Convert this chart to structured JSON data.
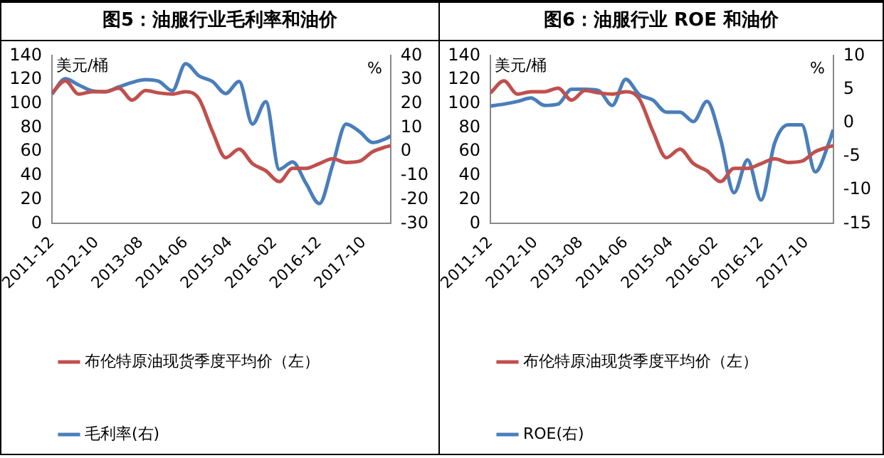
{
  "chart_data": [
    {
      "type": "line",
      "title": "图5：油服行业毛利率和油价",
      "ylabel": "美元/桶",
      "y2label": "%",
      "xlim": [
        "2011-12",
        "2018-04"
      ],
      "xticks": [
        "2011-12",
        "2012-10",
        "2013-08",
        "2014-06",
        "2015-04",
        "2016-02",
        "2016-12",
        "2017-10"
      ],
      "ylim": [
        0,
        140
      ],
      "yticks": [
        0,
        20,
        40,
        60,
        80,
        100,
        120,
        140
      ],
      "y2lim": [
        -30,
        40
      ],
      "y2ticks": [
        -30,
        -20,
        -10,
        0,
        10,
        20,
        30,
        40
      ],
      "grid": false,
      "legend": "bottom",
      "marker": "none",
      "line_style": "solid",
      "series": [
        {
          "name": "布伦特原油现货季度平均价（左）",
          "color": "#c0504d",
          "axis": "y",
          "x": [
            "2011-12",
            "2012-03",
            "2012-06",
            "2012-09",
            "2012-12",
            "2013-03",
            "2013-06",
            "2013-09",
            "2013-12",
            "2014-03",
            "2014-06",
            "2014-09",
            "2014-12",
            "2015-03",
            "2015-06",
            "2015-09",
            "2015-12",
            "2016-03",
            "2016-06",
            "2016-09",
            "2016-12",
            "2017-03",
            "2017-06",
            "2017-09",
            "2017-12",
            "2018-03",
            "2018-04"
          ],
          "values": [
            109,
            119,
            108,
            110,
            110,
            113,
            103,
            111,
            109,
            108,
            110,
            104,
            77,
            55,
            62,
            50,
            44,
            35,
            46,
            46,
            50,
            54,
            51,
            52,
            60,
            64,
            65
          ]
        },
        {
          "name": "毛利率(右)",
          "color": "#4a7ebb",
          "axis": "y2",
          "x": [
            "2011-12",
            "2012-03",
            "2012-06",
            "2012-09",
            "2012-12",
            "2013-03",
            "2013-06",
            "2013-09",
            "2013-12",
            "2014-03",
            "2014-06",
            "2014-09",
            "2014-12",
            "2015-03",
            "2015-06",
            "2015-09",
            "2015-12",
            "2016-03",
            "2016-06",
            "2016-09",
            "2016-12",
            "2017-03",
            "2017-06",
            "2017-09",
            "2017-12",
            "2018-03",
            "2018-04"
          ],
          "values": [
            24,
            30.4,
            27.8,
            25.4,
            25,
            27,
            28.9,
            30,
            29.3,
            25.4,
            36.7,
            31.6,
            29.3,
            24.2,
            29.3,
            11.5,
            20.8,
            -7.4,
            -4.3,
            -13.2,
            -21.7,
            -5.5,
            11.5,
            8.4,
            3.8,
            5.5,
            6.5
          ]
        }
      ]
    },
    {
      "type": "line",
      "title": "图6：油服行业 ROE 和油价",
      "ylabel": "美元/桶",
      "y2label": "%",
      "xlim": [
        "2011-12",
        "2018-04"
      ],
      "xticks": [
        "2011-12",
        "2012-10",
        "2013-08",
        "2014-06",
        "2015-04",
        "2016-02",
        "2016-12",
        "2017-10"
      ],
      "ylim": [
        0,
        140
      ],
      "yticks": [
        0,
        20,
        40,
        60,
        80,
        100,
        120,
        140
      ],
      "y2lim": [
        -15,
        10
      ],
      "y2ticks": [
        -15,
        -10,
        -5,
        0,
        5,
        10
      ],
      "grid": false,
      "legend": "bottom",
      "marker": "none",
      "line_style": "solid",
      "series": [
        {
          "name": "布伦特原油现货季度平均价（左）",
          "color": "#c0504d",
          "axis": "y",
          "x": [
            "2011-12",
            "2012-03",
            "2012-06",
            "2012-09",
            "2012-12",
            "2013-03",
            "2013-06",
            "2013-09",
            "2013-12",
            "2014-03",
            "2014-06",
            "2014-09",
            "2014-12",
            "2015-03",
            "2015-06",
            "2015-09",
            "2015-12",
            "2016-03",
            "2016-06",
            "2016-09",
            "2016-12",
            "2017-03",
            "2017-06",
            "2017-09",
            "2017-12",
            "2018-03",
            "2018-04"
          ],
          "values": [
            109,
            119,
            108,
            110,
            110,
            113,
            103,
            111,
            109,
            108,
            110,
            104,
            77,
            55,
            62,
            50,
            44,
            35,
            46,
            46,
            50,
            54,
            51,
            52,
            60,
            64,
            65
          ]
        },
        {
          "name": "ROE(右)",
          "color": "#4a7ebb",
          "axis": "y2",
          "x": [
            "2011-12",
            "2012-03",
            "2012-06",
            "2012-09",
            "2012-12",
            "2013-03",
            "2013-06",
            "2013-09",
            "2013-12",
            "2014-03",
            "2014-06",
            "2014-09",
            "2014-12",
            "2015-03",
            "2015-06",
            "2015-09",
            "2015-12",
            "2016-03",
            "2016-06",
            "2016-09",
            "2016-12",
            "2017-03",
            "2017-06",
            "2017-09",
            "2017-12",
            "2018-03",
            "2018-04"
          ],
          "values": [
            2.5,
            2.8,
            3.2,
            3.7,
            2.6,
            2.8,
            5,
            5,
            4.8,
            2.6,
            6.5,
            4.2,
            3.4,
            1.6,
            1.6,
            0.2,
            3.2,
            -2.4,
            -10.4,
            -5.5,
            -11.5,
            -3,
            -0.3,
            -0.3,
            -7.3,
            -3,
            -1
          ]
        }
      ]
    }
  ]
}
